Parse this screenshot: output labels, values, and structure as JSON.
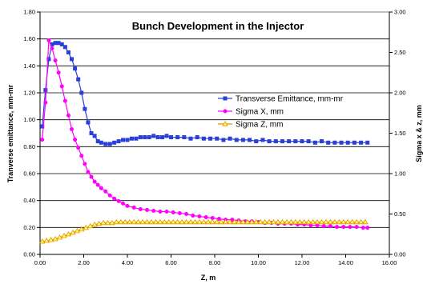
{
  "colors": {
    "emittance": "#2a3fd8",
    "sigma_x": "#ff00ff",
    "sigma_z": "#e59400",
    "sigma_z_fill": "#ffff66"
  },
  "chart_data": {
    "type": "line",
    "title": "Bunch Development in the Injector",
    "xlabel": "Z, m",
    "ylabel_left": "Tranverse emittance, mm-mr",
    "ylabel_right": "Sigma x & z, mm",
    "xlim": [
      0,
      16
    ],
    "ylim_left": [
      0,
      1.8
    ],
    "ylim_right": [
      0,
      3.0
    ],
    "x_ticks": [
      "0.00",
      "2.00",
      "4.00",
      "6.00",
      "8.00",
      "10.00",
      "12.00",
      "14.00",
      "16.00"
    ],
    "y_left_ticks": [
      "0.00",
      "0.20",
      "0.40",
      "0.60",
      "0.80",
      "1.00",
      "1.20",
      "1.40",
      "1.60",
      "1.80"
    ],
    "y_right_ticks": [
      "0.00",
      "0.50",
      "1.00",
      "1.50",
      "2.00",
      "2.50",
      "3.00"
    ],
    "grid": "horizontal",
    "legend_position": "right-middle",
    "series": [
      {
        "name": "Transverse Emittance, mm-mr",
        "axis": "left",
        "marker": "square",
        "x": [
          0.1,
          0.25,
          0.4,
          0.55,
          0.7,
          0.85,
          1.0,
          1.15,
          1.3,
          1.45,
          1.6,
          1.75,
          1.9,
          2.05,
          2.2,
          2.35,
          2.5,
          2.65,
          2.8,
          3.0,
          3.2,
          3.4,
          3.6,
          3.8,
          4.0,
          4.2,
          4.4,
          4.6,
          4.8,
          5.0,
          5.2,
          5.4,
          5.6,
          5.8,
          6.0,
          6.3,
          6.6,
          6.9,
          7.2,
          7.5,
          7.8,
          8.1,
          8.4,
          8.7,
          9.0,
          9.3,
          9.6,
          9.9,
          10.2,
          10.5,
          10.8,
          11.1,
          11.4,
          11.7,
          12.0,
          12.3,
          12.6,
          12.9,
          13.2,
          13.5,
          13.8,
          14.1,
          14.4,
          14.7,
          15.0
        ],
        "y": [
          0.95,
          1.22,
          1.45,
          1.56,
          1.57,
          1.57,
          1.56,
          1.54,
          1.5,
          1.45,
          1.38,
          1.3,
          1.2,
          1.08,
          0.98,
          0.9,
          0.88,
          0.84,
          0.83,
          0.82,
          0.82,
          0.83,
          0.84,
          0.85,
          0.85,
          0.86,
          0.86,
          0.87,
          0.87,
          0.87,
          0.88,
          0.87,
          0.87,
          0.88,
          0.87,
          0.87,
          0.87,
          0.86,
          0.87,
          0.86,
          0.86,
          0.86,
          0.85,
          0.86,
          0.85,
          0.85,
          0.85,
          0.84,
          0.85,
          0.84,
          0.84,
          0.84,
          0.84,
          0.84,
          0.84,
          0.84,
          0.83,
          0.84,
          0.83,
          0.83,
          0.83,
          0.83,
          0.83,
          0.83,
          0.83
        ]
      },
      {
        "name": "Sigma X, mm",
        "axis": "right",
        "marker": "circle",
        "x": [
          0.1,
          0.25,
          0.4,
          0.55,
          0.7,
          0.85,
          1.0,
          1.15,
          1.3,
          1.45,
          1.6,
          1.75,
          1.9,
          2.05,
          2.2,
          2.35,
          2.5,
          2.65,
          2.8,
          3.0,
          3.2,
          3.4,
          3.6,
          3.8,
          4.0,
          4.3,
          4.6,
          4.9,
          5.2,
          5.5,
          5.8,
          6.1,
          6.4,
          6.7,
          7.0,
          7.3,
          7.6,
          7.9,
          8.2,
          8.5,
          8.8,
          9.1,
          9.4,
          9.7,
          10.0,
          10.3,
          10.6,
          10.9,
          11.2,
          11.5,
          11.8,
          12.1,
          12.4,
          12.7,
          13.0,
          13.3,
          13.6,
          13.9,
          14.2,
          14.5,
          14.8,
          15.0
        ],
        "y": [
          1.42,
          1.88,
          2.65,
          2.55,
          2.4,
          2.25,
          2.08,
          1.9,
          1.72,
          1.55,
          1.42,
          1.32,
          1.22,
          1.12,
          1.02,
          0.96,
          0.9,
          0.86,
          0.82,
          0.78,
          0.73,
          0.69,
          0.66,
          0.63,
          0.6,
          0.58,
          0.56,
          0.55,
          0.54,
          0.53,
          0.53,
          0.52,
          0.51,
          0.5,
          0.48,
          0.47,
          0.46,
          0.45,
          0.44,
          0.43,
          0.43,
          0.42,
          0.41,
          0.41,
          0.4,
          0.39,
          0.39,
          0.38,
          0.38,
          0.38,
          0.37,
          0.37,
          0.36,
          0.36,
          0.35,
          0.35,
          0.34,
          0.34,
          0.34,
          0.34,
          0.33,
          0.33
        ]
      },
      {
        "name": "Sigma Z, mm",
        "axis": "right",
        "marker": "triangle",
        "x": [
          0.1,
          0.3,
          0.5,
          0.7,
          0.9,
          1.1,
          1.3,
          1.5,
          1.7,
          1.9,
          2.1,
          2.3,
          2.5,
          2.7,
          2.9,
          3.1,
          3.3,
          3.5,
          3.7,
          3.9,
          4.1,
          4.3,
          4.5,
          4.7,
          4.9,
          5.1,
          5.3,
          5.5,
          5.7,
          5.9,
          6.1,
          6.3,
          6.5,
          6.7,
          6.9,
          7.1,
          7.3,
          7.5,
          7.7,
          7.9,
          8.1,
          8.3,
          8.5,
          8.7,
          8.9,
          9.1,
          9.3,
          9.5,
          9.7,
          9.9,
          10.1,
          10.3,
          10.5,
          10.7,
          10.9,
          11.1,
          11.3,
          11.5,
          11.7,
          11.9,
          12.1,
          12.3,
          12.5,
          12.7,
          12.9,
          13.1,
          13.3,
          13.5,
          13.7,
          13.9,
          14.1,
          14.3,
          14.5,
          14.7,
          14.9
        ],
        "y": [
          0.16,
          0.17,
          0.18,
          0.19,
          0.21,
          0.23,
          0.25,
          0.27,
          0.29,
          0.31,
          0.33,
          0.35,
          0.37,
          0.38,
          0.39,
          0.39,
          0.39,
          0.4,
          0.4,
          0.4,
          0.4,
          0.4,
          0.4,
          0.4,
          0.4,
          0.4,
          0.4,
          0.4,
          0.4,
          0.4,
          0.4,
          0.4,
          0.4,
          0.4,
          0.4,
          0.4,
          0.4,
          0.4,
          0.4,
          0.4,
          0.4,
          0.4,
          0.4,
          0.4,
          0.4,
          0.4,
          0.4,
          0.4,
          0.4,
          0.4,
          0.4,
          0.4,
          0.4,
          0.4,
          0.4,
          0.4,
          0.4,
          0.4,
          0.4,
          0.4,
          0.4,
          0.4,
          0.4,
          0.4,
          0.4,
          0.4,
          0.4,
          0.4,
          0.4,
          0.4,
          0.4,
          0.4,
          0.4,
          0.4,
          0.4
        ]
      }
    ]
  }
}
